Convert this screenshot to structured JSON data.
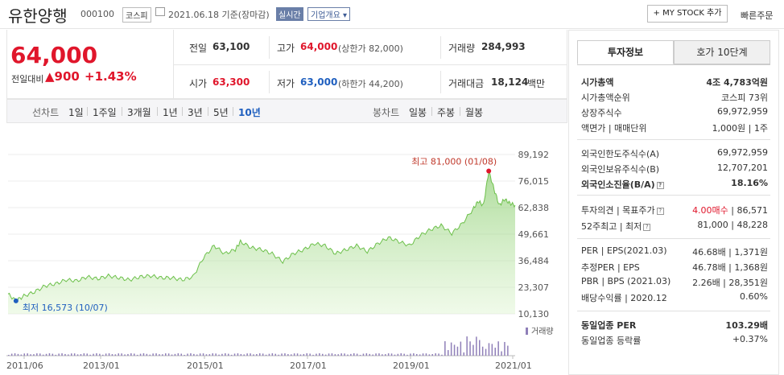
{
  "header": {
    "stock_name": "유한양행",
    "stock_code": "000100",
    "market": "코스피",
    "date": "2021.06.18 기준(장마감)",
    "live": "실시간",
    "company_info": "기업개요",
    "my_stock": "+ MY STOCK 추가",
    "quick_order": "빠른주문"
  },
  "price": {
    "current": "64,000",
    "change_label": "전일대비",
    "change_value": "▲900",
    "change_pct": "+1.43%"
  },
  "quote": {
    "prev_label": "전일",
    "prev_value": "63,100",
    "high_label": "고가",
    "high_value": "64,000",
    "high_sub": "(상한가 82,000)",
    "volume_label": "거래량",
    "volume_value": "284,993",
    "open_label": "시가",
    "open_value": "63,300",
    "low_label": "저가",
    "low_value": "63,000",
    "low_sub": "(하한가 44,200)",
    "amount_label": "거래대금",
    "amount_value": "18,124",
    "amount_unit": "백만"
  },
  "chart_tabs": {
    "line_label": "선차트",
    "periods": [
      "1일",
      "1주일",
      "3개월",
      "1년",
      "3년",
      "5년",
      "10년"
    ],
    "candle_label": "봉차트",
    "candles": [
      "일봉",
      "주봉",
      "월봉"
    ]
  },
  "chart_data": {
    "type": "area",
    "y_ticks": [
      "89,192",
      "76,015",
      "62,838",
      "49,661",
      "36,484",
      "23,307",
      "10,130"
    ],
    "ylim": [
      10130,
      89192
    ],
    "x_ticks": [
      "2011/06",
      "2013/01",
      "2015/01",
      "2017/01",
      "2019/01",
      "2021/01"
    ],
    "max_label": "최고 81,000 (01/08)",
    "min_label": "최저 16,573 (10/07)",
    "volume_label": "거래량",
    "series_color": "#6cc04a",
    "fill_color": "#d9f3c9",
    "points": [
      [
        0,
        20000
      ],
      [
        3,
        16573
      ],
      [
        6,
        19000
      ],
      [
        10,
        21000
      ],
      [
        14,
        24000
      ],
      [
        18,
        25000
      ],
      [
        22,
        27000
      ],
      [
        26,
        26500
      ],
      [
        30,
        28500
      ],
      [
        34,
        27500
      ],
      [
        38,
        29000
      ],
      [
        42,
        28000
      ],
      [
        46,
        27000
      ],
      [
        50,
        28500
      ],
      [
        54,
        29000
      ],
      [
        58,
        28000
      ],
      [
        62,
        28000
      ],
      [
        66,
        27000
      ],
      [
        70,
        28500
      ],
      [
        74,
        38000
      ],
      [
        78,
        44000
      ],
      [
        82,
        40000
      ],
      [
        86,
        42000
      ],
      [
        88,
        46000
      ],
      [
        92,
        43000
      ],
      [
        96,
        42000
      ],
      [
        100,
        40000
      ],
      [
        104,
        36000
      ],
      [
        108,
        40000
      ],
      [
        112,
        42000
      ],
      [
        116,
        45000
      ],
      [
        120,
        44000
      ],
      [
        124,
        40000
      ],
      [
        128,
        42000
      ],
      [
        132,
        44000
      ],
      [
        136,
        41000
      ],
      [
        140,
        45000
      ],
      [
        144,
        48000
      ],
      [
        148,
        46000
      ],
      [
        152,
        44000
      ],
      [
        156,
        49000
      ],
      [
        160,
        52000
      ],
      [
        164,
        54000
      ],
      [
        168,
        50000
      ],
      [
        172,
        55000
      ],
      [
        176,
        62000
      ],
      [
        178,
        66000
      ],
      [
        180,
        64000
      ],
      [
        182,
        81000
      ],
      [
        184,
        72000
      ],
      [
        186,
        64000
      ],
      [
        188,
        67000
      ],
      [
        190,
        65000
      ],
      [
        192,
        64000
      ]
    ]
  },
  "right_panel": {
    "tab_invest": "투자정보",
    "tab_quote": "호가 10단계",
    "rows1": [
      {
        "label": "시가총액",
        "value": "4조 4,783억원"
      },
      {
        "label": "시가총액순위",
        "value": "코스피 73위"
      },
      {
        "label": "상장주식수",
        "value": "69,972,959"
      },
      {
        "label": "액면가 | 매매단위",
        "value": "1,000원 | 1주"
      }
    ],
    "rows2": [
      {
        "label": "외국인한도주식수(A)",
        "value": "69,972,959"
      },
      {
        "label": "외국인보유주식수(B)",
        "value": "12,707,201"
      },
      {
        "label": "외국인소진율(B/A)",
        "value": "18.16%"
      }
    ],
    "opinion_label": "투자의견 | 목표주가",
    "opinion_value": "4.00매수",
    "target_value": "86,571",
    "w52_label": "52주최고 | 최저",
    "w52_value": "81,000 | 48,228",
    "rows4": [
      {
        "label": "PER | EPS(2021.03)",
        "value": "46.68배 | 1,371원"
      },
      {
        "label": "추정PER | EPS",
        "value": "46.78배 | 1,368원"
      },
      {
        "label": "PBR | BPS (2021.03)",
        "value": "2.26배 | 28,351원"
      },
      {
        "label": "배당수익률 | 2020.12",
        "value": "0.60%"
      }
    ],
    "industry_per_label": "동일업종 PER",
    "industry_per_value": "103.29배",
    "industry_rate_label": "동일업종 등락률",
    "industry_rate_value": "+0.37%"
  }
}
